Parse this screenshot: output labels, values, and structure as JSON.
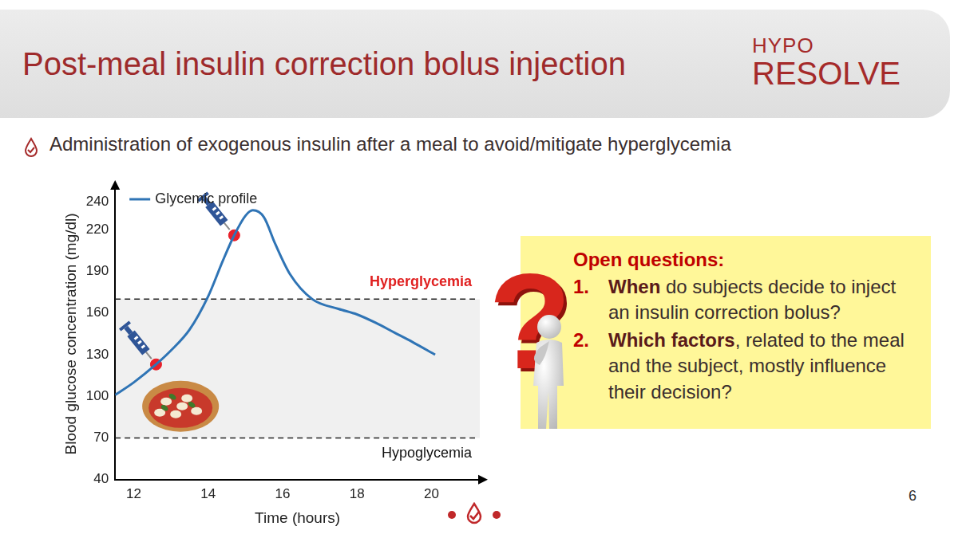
{
  "header": {
    "title": "Post-meal insulin correction bolus injection",
    "logo": {
      "top": "HYPO",
      "bottom": "RESOLVE"
    }
  },
  "bullet": "Administration of exogenous insulin after a meal to avoid/mitigate hyperglycemia",
  "chart_data": {
    "type": "line",
    "x_label": "Time (hours)",
    "y_label": "Blood glucose concentration (mg/dl)",
    "series": [
      {
        "name": "Glycemic profile",
        "color": "#2f74b5",
        "x": [
          11.5,
          12,
          12.6,
          13,
          13.5,
          14,
          14.4,
          14.7,
          15,
          15.2,
          15.5,
          15.8,
          16.2,
          16.8,
          17.5,
          18,
          18.5,
          19,
          19.5,
          20.1
        ],
        "values": [
          101,
          110,
          123,
          133,
          148,
          172,
          198,
          216,
          230,
          234,
          229,
          210,
          188,
          170,
          163,
          159,
          153,
          146,
          139,
          130
        ]
      }
    ],
    "injections": {
      "x": [
        12.6,
        14.7
      ],
      "values": [
        123,
        216
      ],
      "color": "#e8202a",
      "marker": "circle"
    },
    "thresholds": [
      {
        "value": 170,
        "label": "Hyperglycemia",
        "color": "#e02020"
      },
      {
        "value": 70,
        "label": "Hypoglycemia",
        "color": "#111111"
      }
    ],
    "xlim": [
      11.5,
      21.3
    ],
    "xticks": [
      12,
      14,
      16,
      18,
      20
    ],
    "ylim": [
      40,
      250
    ],
    "yticks": [
      40,
      70,
      100,
      130,
      160,
      190,
      220,
      240
    ],
    "grid": false,
    "legend": "upper left"
  },
  "questions_box": {
    "icon": "?",
    "heading": "Open questions:",
    "items": [
      {
        "number": "1.",
        "bold": "When",
        "text": " do subjects decide to inject an insulin correction bolus?"
      },
      {
        "number": "2.",
        "bold": "Which factors",
        "text": ", related to the meal and the subject, mostly influence their decision?"
      }
    ]
  },
  "page_number": "6"
}
